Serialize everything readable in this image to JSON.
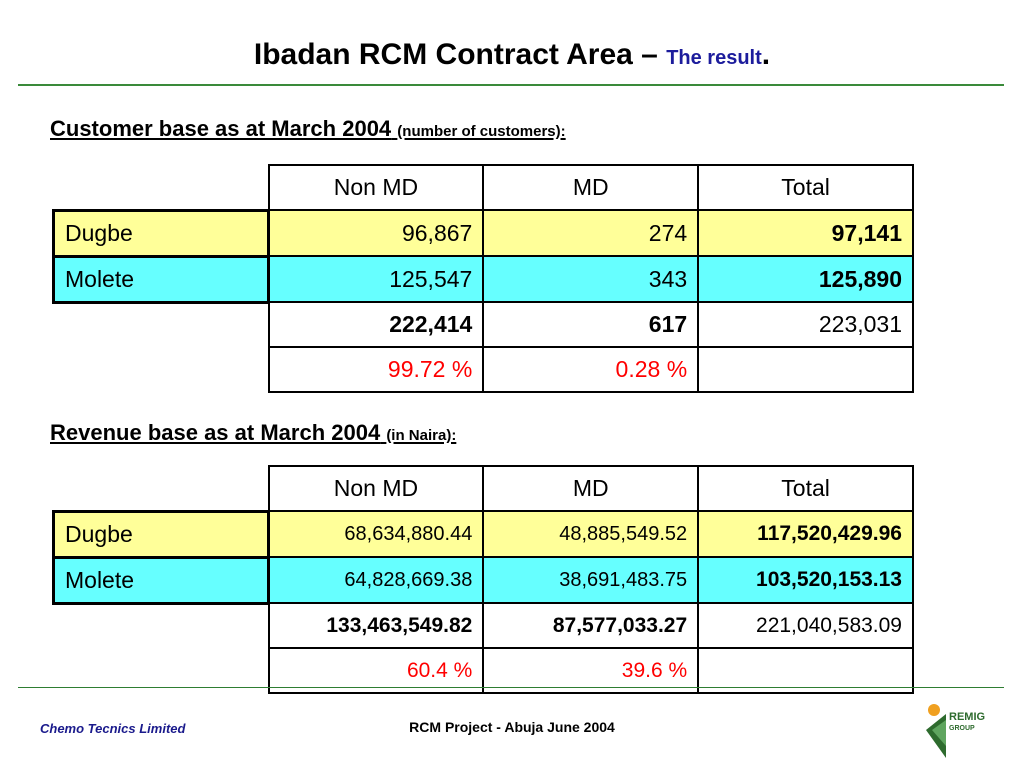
{
  "slide": {
    "title_main": "Ibadan RCM Contract Area –",
    "title_accent": "The result",
    "title_end": "."
  },
  "customer": {
    "heading": "Customer base as at March 2004",
    "heading_sub": "(number of customers):",
    "columns": [
      "Non MD",
      "MD",
      "Total"
    ],
    "rows": [
      {
        "label": "Dugbe",
        "values": [
          "96,867",
          "274",
          "97,141"
        ]
      },
      {
        "label": "Molete",
        "values": [
          "125,547",
          "343",
          "125,890"
        ]
      }
    ],
    "totals": [
      "222,414",
      "617",
      "223,031"
    ],
    "percents": [
      "99.72 %",
      "0.28 %",
      ""
    ]
  },
  "revenue": {
    "heading": "Revenue base as at March 2004",
    "heading_sub": "(in Naira):",
    "columns": [
      "Non MD",
      "MD",
      "Total"
    ],
    "rows": [
      {
        "label": "Dugbe",
        "values": [
          "68,634,880.44",
          "48,885,549.52",
          "117,520,429.96"
        ]
      },
      {
        "label": "Molete",
        "values": [
          "64,828,669.38",
          "38,691,483.75",
          "103,520,153.13"
        ]
      }
    ],
    "totals": [
      "133,463,549.82",
      "87,577,033.27",
      "221,040,583.09"
    ],
    "percents": [
      "60.4 %",
      "39.6 %",
      ""
    ]
  },
  "footer": {
    "left": "Chemo Tecnics Limited",
    "center": "RCM Project - Abuja June 2004",
    "logo_line1": "REMIG",
    "logo_line2": "GROUP"
  },
  "colors": {
    "rule": "#3a8a3a",
    "accent_blue": "#1c1c9c",
    "row_dugbe": "#ffff99",
    "row_molete": "#66ffff",
    "percent_red": "#ff0000",
    "logo_green": "#2e6b2e",
    "logo_orange": "#f0a020"
  }
}
